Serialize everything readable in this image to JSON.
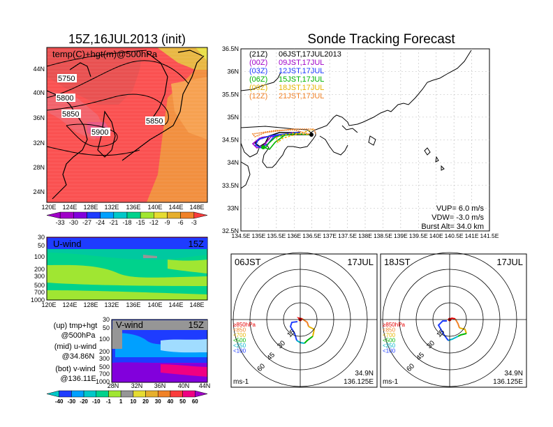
{
  "main_title": "15Z,16JUL2013 (init)",
  "right_title": "Sonde Tracking Forecast",
  "map_panel": {
    "label": "temp(C)+hgt(m)@500hPa",
    "y_ticks": [
      "44N",
      "40N",
      "36N",
      "32N",
      "28N",
      "24N"
    ],
    "x_ticks": [
      "120E",
      "124E",
      "128E",
      "132E",
      "136E",
      "140E",
      "144E",
      "148E"
    ],
    "contour_labels": [
      "5750",
      "5800",
      "5850",
      "5900",
      "5850"
    ],
    "colorbar_labels": [
      "-33",
      "-30",
      "-27",
      "-24",
      "-21",
      "-18",
      "-15",
      "-12",
      "-9",
      "-6",
      "-3"
    ],
    "colorbar_colors": [
      "#a000c8",
      "#8200dc",
      "#1e3cff",
      "#00a0ff",
      "#00c8c8",
      "#00d28c",
      "#a0e632",
      "#e6dc32",
      "#e6af2d",
      "#f08228",
      "#fa3c3c"
    ]
  },
  "uwind_panel": {
    "label": "U-wind",
    "time": "15Z",
    "y_ticks": [
      "30",
      "50",
      "100",
      "200",
      "300",
      "500",
      "700",
      "1000"
    ],
    "x_ticks": [
      "120E",
      "124E",
      "128E",
      "132E",
      "136E",
      "140E",
      "144E",
      "148E"
    ]
  },
  "vwind_panel": {
    "label": "V-wind",
    "time": "15Z",
    "y_ticks": [
      "30",
      "50",
      "100",
      "200",
      "300",
      "500",
      "700",
      "1000"
    ],
    "x_ticks": [
      "28N",
      "32N",
      "36N",
      "40N",
      "44N"
    ]
  },
  "notes": [
    {
      "a": "(up) tmp+hgt",
      "b": "@500hPa"
    },
    {
      "a": "(mid) u-wind",
      "b": "@34.86N"
    },
    {
      "a": "(bot) v-wind",
      "b": "@136.11E"
    }
  ],
  "wind_colorbar": {
    "labels": [
      "-40",
      "-30",
      "-20",
      "-10",
      "-1",
      "1",
      "10",
      "20",
      "30",
      "40",
      "50",
      "60"
    ],
    "colors": [
      "#1e3cff",
      "#00a0ff",
      "#00c8c8",
      "#00d28c",
      "#a0e632",
      "#969696",
      "#e6dc32",
      "#e6af2d",
      "#f08228",
      "#fa3c3c",
      "#f00082",
      "#a000c8"
    ]
  },
  "track_panel": {
    "legend": [
      {
        "code": "(21Z)",
        "time": "06JST,17JUL2013",
        "color": "#000000"
      },
      {
        "code": "(00Z)",
        "time": "09JST,17JUL",
        "color": "#a000c8"
      },
      {
        "code": "(03Z)",
        "time": "12JST,17JUL",
        "color": "#1e3cff"
      },
      {
        "code": "(06Z)",
        "time": "15JST,17JUL",
        "color": "#00b400"
      },
      {
        "code": "(09Z)",
        "time": "18JST,17JUL",
        "color": "#e6b400"
      },
      {
        "code": "(12Z)",
        "time": "21JST,17JUL",
        "color": "#f08228"
      }
    ],
    "y_ticks": [
      "36.5N",
      "36N",
      "35.5N",
      "35N",
      "34.5N",
      "34N",
      "33.5N",
      "33N",
      "32.5N"
    ],
    "x_ticks": [
      "134.5E",
      "135E",
      "135.5E",
      "136E",
      "136.5E",
      "137E",
      "137.5E",
      "138E",
      "138.5E",
      "139E",
      "139.5E",
      "140E",
      "140.5E",
      "141E",
      "141.5E"
    ],
    "params": [
      "VUP= 6.0 m/s",
      "VDW= -3.0 m/s",
      "Burst Alt= 34.0 km"
    ]
  },
  "hodographs": [
    {
      "label": "06JST",
      "date": "17JUL",
      "loc1": "34.9N",
      "loc2": "136.125E",
      "unit": "ms-1",
      "ring_labels": [
        "15",
        "30",
        "45",
        "60"
      ],
      "levels": [
        {
          "t": "≥850hPa",
          "c": "#e60000"
        },
        {
          "t": "<850",
          "c": "#f08228"
        },
        {
          "t": "<700",
          "c": "#e6b400"
        },
        {
          "t": "<500",
          "c": "#00b400"
        },
        {
          "t": "<250",
          "c": "#00b4c8"
        },
        {
          "t": "<100",
          "c": "#1e3cff"
        }
      ]
    },
    {
      "label": "18JST",
      "date": "17JUL",
      "loc1": "34.9N",
      "loc2": "136.125E",
      "unit": "ms-1",
      "ring_labels": [
        "15",
        "30",
        "45",
        "60"
      ],
      "levels": [
        {
          "t": "≥850hPa",
          "c": "#e60000"
        },
        {
          "t": "<850",
          "c": "#f08228"
        },
        {
          "t": "<700",
          "c": "#e6b400"
        },
        {
          "t": "<500",
          "c": "#00b400"
        },
        {
          "t": "<250",
          "c": "#00b4c8"
        },
        {
          "t": "<100",
          "c": "#1e3cff"
        }
      ]
    }
  ],
  "chart_data": [
    {
      "type": "heatmap",
      "title": "temp(C)+hgt(m)@500hPa",
      "x_range": [
        "120E",
        "150E"
      ],
      "y_range": [
        "22N",
        "47N"
      ],
      "contours": [
        5750,
        5800,
        5850,
        5900,
        5850
      ],
      "colorbar": [
        -33,
        -30,
        -27,
        -24,
        -21,
        -18,
        -15,
        -12,
        -9,
        -6,
        -3
      ]
    },
    {
      "type": "heatmap",
      "title": "U-wind",
      "time": "15Z",
      "x_range": [
        "120E",
        "150E"
      ],
      "y_levels_hpa": [
        30,
        50,
        100,
        200,
        300,
        500,
        700,
        1000
      ]
    },
    {
      "type": "heatmap",
      "title": "V-wind",
      "time": "15Z",
      "x_range": [
        "28N",
        "44N"
      ],
      "y_levels_hpa": [
        30,
        50,
        100,
        200,
        300,
        500,
        700,
        1000
      ]
    },
    {
      "type": "line",
      "title": "Sonde Tracking Forecast",
      "xlim": [
        134.5,
        141.5
      ],
      "ylim": [
        32.5,
        36.5
      ],
      "launch": [
        136.11,
        34.86
      ],
      "vup_ms": 6.0,
      "vdw_ms": -3.0,
      "burst_alt_km": 34.0
    }
  ]
}
